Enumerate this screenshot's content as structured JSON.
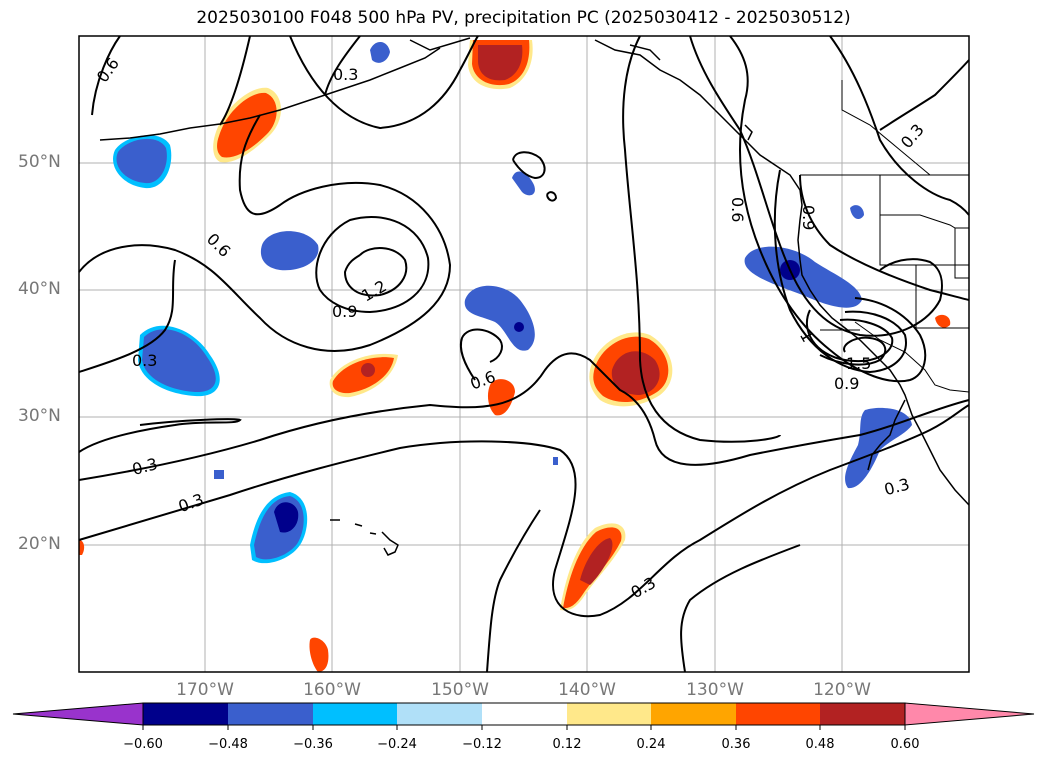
{
  "title": "2025030100 F048 500 hPa PV, precipitation PC (2025030412 - 2025030512)",
  "map": {
    "lat_labels": [
      "50°N",
      "40°N",
      "30°N",
      "20°N"
    ],
    "lon_labels": [
      "170°W",
      "160°W",
      "150°W",
      "140°W",
      "130°W",
      "120°W"
    ],
    "contour_labels": [
      "0.6",
      "0.3",
      "0.6",
      "1.2",
      "0.9",
      "0.3",
      "0.3",
      "0.3",
      "0.6",
      "0.3",
      "0.6",
      "0.9",
      "1",
      "1.5",
      "0.3",
      "0.3",
      "0.9"
    ],
    "grid": true,
    "land_colors": {
      "coast": "#000000",
      "grid": "#b0b0b0"
    }
  },
  "colorbar": {
    "ticks": [
      "−0.60",
      "−0.48",
      "−0.36",
      "−0.24",
      "−0.12",
      "0.12",
      "0.24",
      "0.36",
      "0.48",
      "0.60"
    ],
    "colors": [
      "#9933cc",
      "#00008b",
      "#3a5fcd",
      "#00bfff",
      "#b0e0f8",
      "#ffffff",
      "#ffe88a",
      "#ffa500",
      "#ff4500",
      "#b22222",
      "#ff88aa"
    ]
  }
}
